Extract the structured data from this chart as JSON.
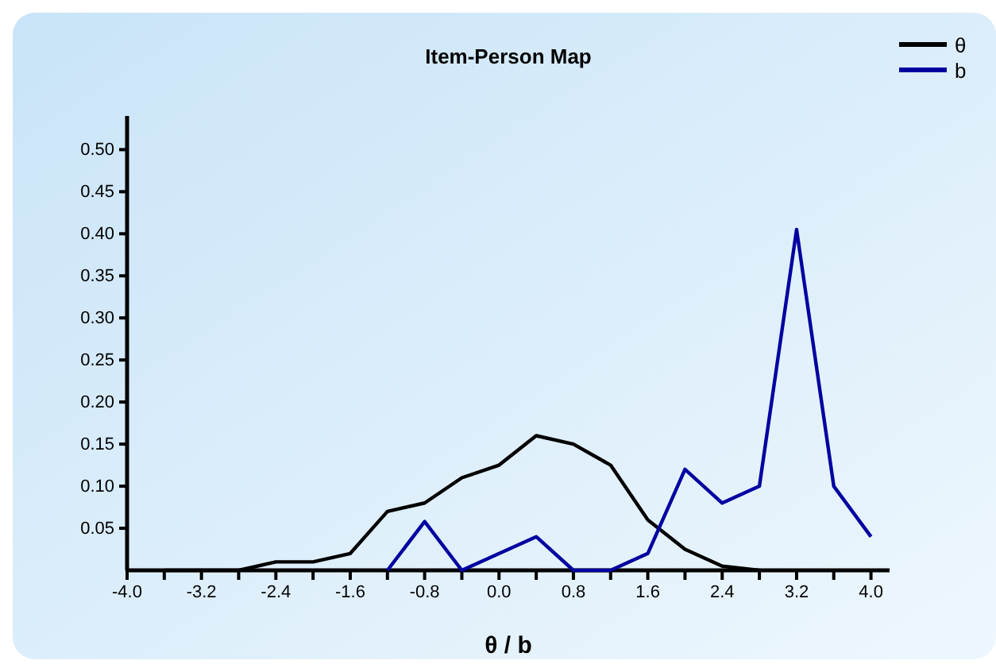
{
  "chart_data": {
    "type": "line",
    "title": "Item-Person Map",
    "xlabel": "θ / b",
    "xlim": [
      -4,
      4.2
    ],
    "ylim": [
      0,
      0.54
    ],
    "xticks": [
      {
        "value": -4,
        "label": "-4.0"
      },
      {
        "value": -3.6,
        "label": null
      },
      {
        "value": -3.2,
        "label": "-3.2"
      },
      {
        "value": -2.8,
        "label": null
      },
      {
        "value": -2.4,
        "label": "-2.4"
      },
      {
        "value": -2,
        "label": null
      },
      {
        "value": -1.6,
        "label": "-1.6"
      },
      {
        "value": -1.2,
        "label": null
      },
      {
        "value": -0.8,
        "label": "-0.8"
      },
      {
        "value": -0.4,
        "label": null
      },
      {
        "value": 0,
        "label": "0.0"
      },
      {
        "value": 0.4,
        "label": null
      },
      {
        "value": 0.8,
        "label": "0.8"
      },
      {
        "value": 1.2,
        "label": null
      },
      {
        "value": 1.6,
        "label": "1.6"
      },
      {
        "value": 2,
        "label": null
      },
      {
        "value": 2.4,
        "label": "2.4"
      },
      {
        "value": 2.8,
        "label": null
      },
      {
        "value": 3.2,
        "label": "3.2"
      },
      {
        "value": 3.6,
        "label": null
      },
      {
        "value": 4,
        "label": "4.0"
      }
    ],
    "yticks": [
      {
        "value": 0.05,
        "label": "0.05"
      },
      {
        "value": 0.1,
        "label": "0.10"
      },
      {
        "value": 0.15,
        "label": "0.15"
      },
      {
        "value": 0.2,
        "label": "0.20"
      },
      {
        "value": 0.25,
        "label": "0.25"
      },
      {
        "value": 0.3,
        "label": "0.30"
      },
      {
        "value": 0.35,
        "label": "0.35"
      },
      {
        "value": 0.4,
        "label": "0.40"
      },
      {
        "value": 0.45,
        "label": "0.45"
      },
      {
        "value": 0.5,
        "label": "0.50"
      }
    ],
    "legend": "top right",
    "grid": false,
    "series": [
      {
        "name": "θ",
        "color": "#000000",
        "x": [
          -3.6,
          -3.2,
          -2.8,
          -2.4,
          -2.0,
          -1.6,
          -1.2,
          -0.8,
          -0.4,
          0,
          0.4,
          0.8,
          1.2,
          1.6,
          2.0,
          2.4,
          2.8
        ],
        "values": [
          0,
          0,
          0,
          0.01,
          0.01,
          0.02,
          0.07,
          0.08,
          0.11,
          0.125,
          0.16,
          0.15,
          0.125,
          0.06,
          0.025,
          0.005,
          0
        ]
      },
      {
        "name": "b",
        "color": "#0000a0",
        "x": [
          -1.2,
          -0.8,
          -0.4,
          0.4,
          0.8,
          1.2,
          1.6,
          2.0,
          2.4,
          2.8,
          3.2,
          3.6,
          4.0
        ],
        "values": [
          0,
          0.058,
          0,
          0.04,
          0,
          0,
          0.02,
          0.12,
          0.08,
          0.1,
          0.405,
          0.1,
          0.04
        ]
      }
    ]
  }
}
